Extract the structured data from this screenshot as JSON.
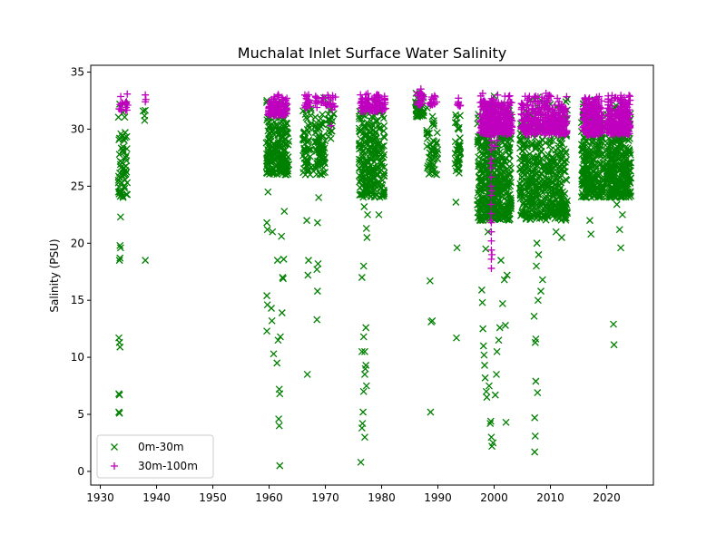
{
  "chart_data": {
    "type": "scatter",
    "title": "Muchalat Inlet Surface Water Salinity",
    "xlabel": "",
    "ylabel": "Salinity (PSU)",
    "xlim": [
      1928.3,
      2028.3
    ],
    "ylim": [
      -1.2,
      35.6
    ],
    "xticks": [
      1930,
      1940,
      1950,
      1960,
      1970,
      1980,
      1990,
      2000,
      2010,
      2020
    ],
    "yticks": [
      0,
      5,
      10,
      15,
      20,
      25,
      30,
      35
    ],
    "grid": false,
    "legend": {
      "placement": "lower-left"
    },
    "series": [
      {
        "name": "0m-30m",
        "marker": "x",
        "color": "#008000",
        "clusters": [
          {
            "x": [
              1933.2,
              1934.8
            ],
            "y": [
              24.0,
              33.0
            ],
            "n": 60
          },
          {
            "x": [
              1937.6,
              1938.0
            ],
            "y": [
              30.5,
              32.5
            ],
            "n": 4
          },
          {
            "x": [
              1959.5,
              1963.5
            ],
            "y": [
              26.0,
              32.8
            ],
            "n": 220
          },
          {
            "x": [
              1966.0,
              1967.5
            ],
            "y": [
              26.0,
              33.0
            ],
            "n": 60
          },
          {
            "x": [
              1968.0,
              1970.0
            ],
            "y": [
              26.0,
              32.8
            ],
            "n": 80
          },
          {
            "x": [
              1970.5,
              1971.5
            ],
            "y": [
              29.0,
              32.8
            ],
            "n": 20
          },
          {
            "x": [
              1976.0,
              1980.5
            ],
            "y": [
              24.0,
              32.5
            ],
            "n": 260
          },
          {
            "x": [
              1986.0,
              1987.5
            ],
            "y": [
              31.0,
              33.5
            ],
            "n": 40
          },
          {
            "x": [
              1988.0,
              1990.0
            ],
            "y": [
              26.0,
              33.0
            ],
            "n": 50
          },
          {
            "x": [
              1993.0,
              1994.0
            ],
            "y": [
              26.0,
              32.5
            ],
            "n": 40
          },
          {
            "x": [
              1997.0,
              2003.0
            ],
            "y": [
              22.0,
              33.0
            ],
            "n": 500
          },
          {
            "x": [
              2004.5,
              2013.0
            ],
            "y": [
              22.0,
              33.0
            ],
            "n": 500
          },
          {
            "x": [
              2015.5,
              2019.5
            ],
            "y": [
              24.0,
              33.0
            ],
            "n": 260
          },
          {
            "x": [
              2020.0,
              2024.3
            ],
            "y": [
              24.0,
              33.0
            ],
            "n": 300
          }
        ],
        "points": [
          [
            1933.3,
            11.7
          ],
          [
            1933.4,
            11.3
          ],
          [
            1933.5,
            10.9
          ],
          [
            1933.3,
            6.8
          ],
          [
            1933.4,
            6.7
          ],
          [
            1933.3,
            5.2
          ],
          [
            1933.4,
            5.1
          ],
          [
            1933.6,
            22.3
          ],
          [
            1933.5,
            19.8
          ],
          [
            1933.6,
            19.6
          ],
          [
            1933.5,
            18.7
          ],
          [
            1933.4,
            18.5
          ],
          [
            1933.7,
            24.5
          ],
          [
            1933.8,
            24.3
          ],
          [
            1934.5,
            27.5
          ],
          [
            1934.2,
            28.0
          ],
          [
            1938.0,
            18.5
          ],
          [
            1959.6,
            21.8
          ],
          [
            1959.7,
            21.2
          ],
          [
            1959.8,
            24.5
          ],
          [
            1959.6,
            15.4
          ],
          [
            1959.7,
            14.6
          ],
          [
            1959.6,
            12.3
          ],
          [
            1960.4,
            14.3
          ],
          [
            1960.5,
            13.2
          ],
          [
            1960.8,
            10.3
          ],
          [
            1960.6,
            21.0
          ],
          [
            1961.5,
            18.5
          ],
          [
            1961.6,
            11.5
          ],
          [
            1961.4,
            9.5
          ],
          [
            1961.8,
            7.2
          ],
          [
            1961.9,
            6.8
          ],
          [
            1961.7,
            4.6
          ],
          [
            1961.8,
            4.0
          ],
          [
            1961.9,
            0.5
          ],
          [
            1962.0,
            11.8
          ],
          [
            1962.3,
            13.9
          ],
          [
            1962.5,
            16.9
          ],
          [
            1962.4,
            17.0
          ],
          [
            1962.6,
            18.6
          ],
          [
            1962.2,
            20.6
          ],
          [
            1962.7,
            22.8
          ],
          [
            1966.8,
            8.5
          ],
          [
            1966.9,
            17.2
          ],
          [
            1967.0,
            18.5
          ],
          [
            1966.7,
            22.0
          ],
          [
            1968.5,
            13.3
          ],
          [
            1968.6,
            15.8
          ],
          [
            1968.5,
            17.7
          ],
          [
            1968.7,
            18.2
          ],
          [
            1968.6,
            21.8
          ],
          [
            1968.8,
            24.0
          ],
          [
            1976.3,
            0.8
          ],
          [
            1976.5,
            3.8
          ],
          [
            1976.6,
            4.2
          ],
          [
            1976.7,
            5.2
          ],
          [
            1977.0,
            3.0
          ],
          [
            1976.8,
            7.0
          ],
          [
            1977.0,
            8.5
          ],
          [
            1977.2,
            9.3
          ],
          [
            1977.1,
            9.0
          ],
          [
            1977.3,
            7.5
          ],
          [
            1976.5,
            10.5
          ],
          [
            1977.0,
            10.5
          ],
          [
            1976.8,
            11.8
          ],
          [
            1977.2,
            12.6
          ],
          [
            1976.5,
            17.0
          ],
          [
            1976.8,
            18.0
          ],
          [
            1977.4,
            20.5
          ],
          [
            1977.3,
            21.3
          ],
          [
            1977.5,
            22.5
          ],
          [
            1976.9,
            23.2
          ],
          [
            1979.5,
            22.5
          ],
          [
            1988.7,
            5.2
          ],
          [
            1988.8,
            13.1
          ],
          [
            1988.6,
            16.7
          ],
          [
            1989.0,
            13.2
          ],
          [
            1993.3,
            11.7
          ],
          [
            1993.4,
            19.6
          ],
          [
            1993.2,
            23.6
          ],
          [
            1997.8,
            15.9
          ],
          [
            1997.9,
            14.8
          ],
          [
            1998.0,
            12.5
          ],
          [
            1998.1,
            11.0
          ],
          [
            1998.2,
            10.2
          ],
          [
            1998.3,
            9.3
          ],
          [
            1998.4,
            8.2
          ],
          [
            1998.6,
            7.0
          ],
          [
            1998.7,
            6.5
          ],
          [
            1999.1,
            7.5
          ],
          [
            1999.3,
            4.2
          ],
          [
            1999.4,
            4.4
          ],
          [
            1999.5,
            3.0
          ],
          [
            1999.6,
            2.2
          ],
          [
            1999.8,
            2.5
          ],
          [
            2000.2,
            6.7
          ],
          [
            2000.4,
            8.5
          ],
          [
            2000.5,
            10.5
          ],
          [
            2000.8,
            11.5
          ],
          [
            2001.0,
            12.6
          ],
          [
            2001.5,
            14.7
          ],
          [
            2001.8,
            16.8
          ],
          [
            2002.1,
            4.3
          ],
          [
            2002.0,
            12.8
          ],
          [
            2002.3,
            17.2
          ],
          [
            2001.2,
            18.5
          ],
          [
            1998.5,
            19.5
          ],
          [
            1998.9,
            21.0
          ],
          [
            2007.2,
            1.7
          ],
          [
            2007.3,
            3.1
          ],
          [
            2007.2,
            4.7
          ],
          [
            2007.7,
            6.9
          ],
          [
            2007.4,
            7.9
          ],
          [
            2007.3,
            11.3
          ],
          [
            2007.4,
            11.6
          ],
          [
            2007.1,
            13.6
          ],
          [
            2007.8,
            15.0
          ],
          [
            2008.3,
            15.8
          ],
          [
            2008.6,
            16.8
          ],
          [
            2007.5,
            18.0
          ],
          [
            2007.9,
            19.0
          ],
          [
            2007.6,
            20.0
          ],
          [
            2011.0,
            21.0
          ],
          [
            2012.0,
            20.5
          ],
          [
            2009.4,
            22.5
          ],
          [
            2011.5,
            23.5
          ],
          [
            2017.0,
            22.0
          ],
          [
            2017.2,
            20.8
          ],
          [
            2018.8,
            24.5
          ],
          [
            2019.0,
            25.0
          ],
          [
            2021.3,
            11.1
          ],
          [
            2021.2,
            12.9
          ],
          [
            2022.5,
            19.6
          ],
          [
            2022.3,
            21.2
          ],
          [
            2022.8,
            22.5
          ],
          [
            2021.8,
            23.4
          ],
          [
            2023.7,
            24.4
          ]
        ]
      },
      {
        "name": "30m-100m",
        "marker": "+",
        "color": "#bf00bf",
        "clusters": [
          {
            "x": [
              1933.3,
              1935.0
            ],
            "y": [
              31.6,
              33.1
            ],
            "n": 20
          },
          {
            "x": [
              1959.8,
              1963.2
            ],
            "y": [
              31.2,
              33.2
            ],
            "n": 100
          },
          {
            "x": [
              1966.3,
              1967.3
            ],
            "y": [
              31.8,
              33.3
            ],
            "n": 20
          },
          {
            "x": [
              1968.2,
              1971.8
            ],
            "y": [
              31.8,
              33.2
            ],
            "n": 30
          },
          {
            "x": [
              1976.2,
              1980.8
            ],
            "y": [
              31.5,
              33.2
            ],
            "n": 100
          },
          {
            "x": [
              1986.3,
              1987.6
            ],
            "y": [
              32.0,
              33.8
            ],
            "n": 25
          },
          {
            "x": [
              1988.5,
              1989.8
            ],
            "y": [
              32.0,
              33.0
            ],
            "n": 15
          },
          {
            "x": [
              1993.5,
              1994.0
            ],
            "y": [
              32.0,
              32.8
            ],
            "n": 10
          },
          {
            "x": [
              1997.5,
              2003.2
            ],
            "y": [
              29.5,
              33.2
            ],
            "n": 320
          },
          {
            "x": [
              2004.8,
              2013.0
            ],
            "y": [
              29.5,
              33.2
            ],
            "n": 330
          },
          {
            "x": [
              2015.8,
              2019.3
            ],
            "y": [
              29.5,
              33.2
            ],
            "n": 220
          },
          {
            "x": [
              2020.0,
              2024.2
            ],
            "y": [
              29.5,
              33.2
            ],
            "n": 260
          }
        ],
        "points": [
          [
            1938.0,
            33.0
          ],
          [
            1938.0,
            32.4
          ],
          [
            1938.1,
            32.6
          ],
          [
            1971.2,
            31.7
          ],
          [
            1971.0,
            30.3
          ],
          [
            1999.5,
            17.8
          ],
          [
            1999.5,
            18.6
          ],
          [
            1999.5,
            19.4
          ],
          [
            1999.5,
            20.2
          ],
          [
            1999.5,
            21.0
          ],
          [
            1999.5,
            21.8
          ],
          [
            1999.5,
            22.6
          ],
          [
            1999.5,
            23.4
          ],
          [
            1999.5,
            24.2
          ],
          [
            1999.5,
            25.0
          ],
          [
            1999.5,
            25.8
          ],
          [
            1999.5,
            26.6
          ],
          [
            1999.5,
            27.4
          ],
          [
            1999.5,
            28.2
          ],
          [
            1999.5,
            29.0
          ],
          [
            1999.6,
            28.6
          ],
          [
            1999.4,
            27.0
          ],
          [
            1999.6,
            24.6
          ],
          [
            1999.4,
            22.0
          ],
          [
            1999.6,
            19.0
          ],
          [
            2000.5,
            29.0
          ],
          [
            2000.2,
            28.5
          ]
        ]
      }
    ]
  }
}
